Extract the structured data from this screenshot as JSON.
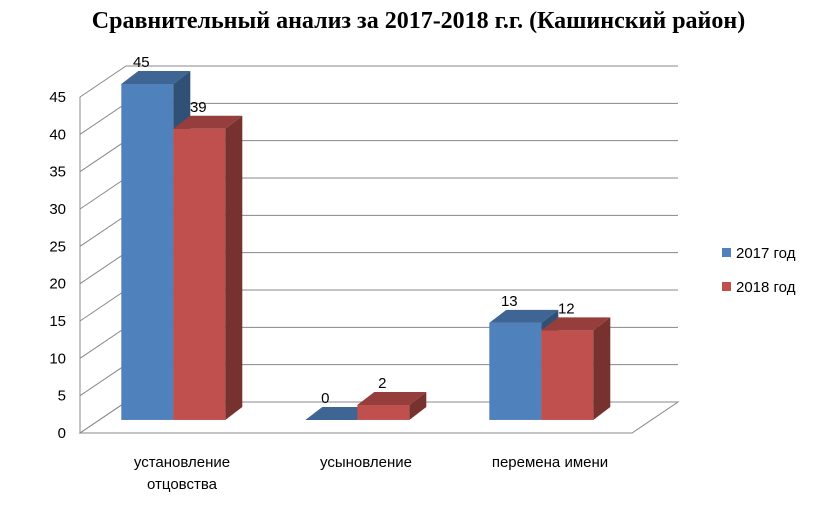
{
  "chart_data": {
    "type": "bar",
    "title": "Сравнительный анализ за 2017-2018 г.г. (Кашинский район)",
    "categories": [
      [
        "установление",
        "отцовства"
      ],
      [
        "усыновление"
      ],
      [
        "перемена имени"
      ]
    ],
    "series": [
      {
        "name": "2017 год",
        "values": [
          45,
          0,
          13
        ],
        "color": "#4f81bd"
      },
      {
        "name": "2018 год",
        "values": [
          39,
          2,
          12
        ],
        "color": "#c0504d"
      }
    ],
    "ylim": [
      0,
      45
    ],
    "yticks": [
      0,
      5,
      10,
      15,
      20,
      25,
      30,
      35,
      40,
      45
    ],
    "grid": true,
    "legend": "right",
    "style": "3d-clustered"
  }
}
